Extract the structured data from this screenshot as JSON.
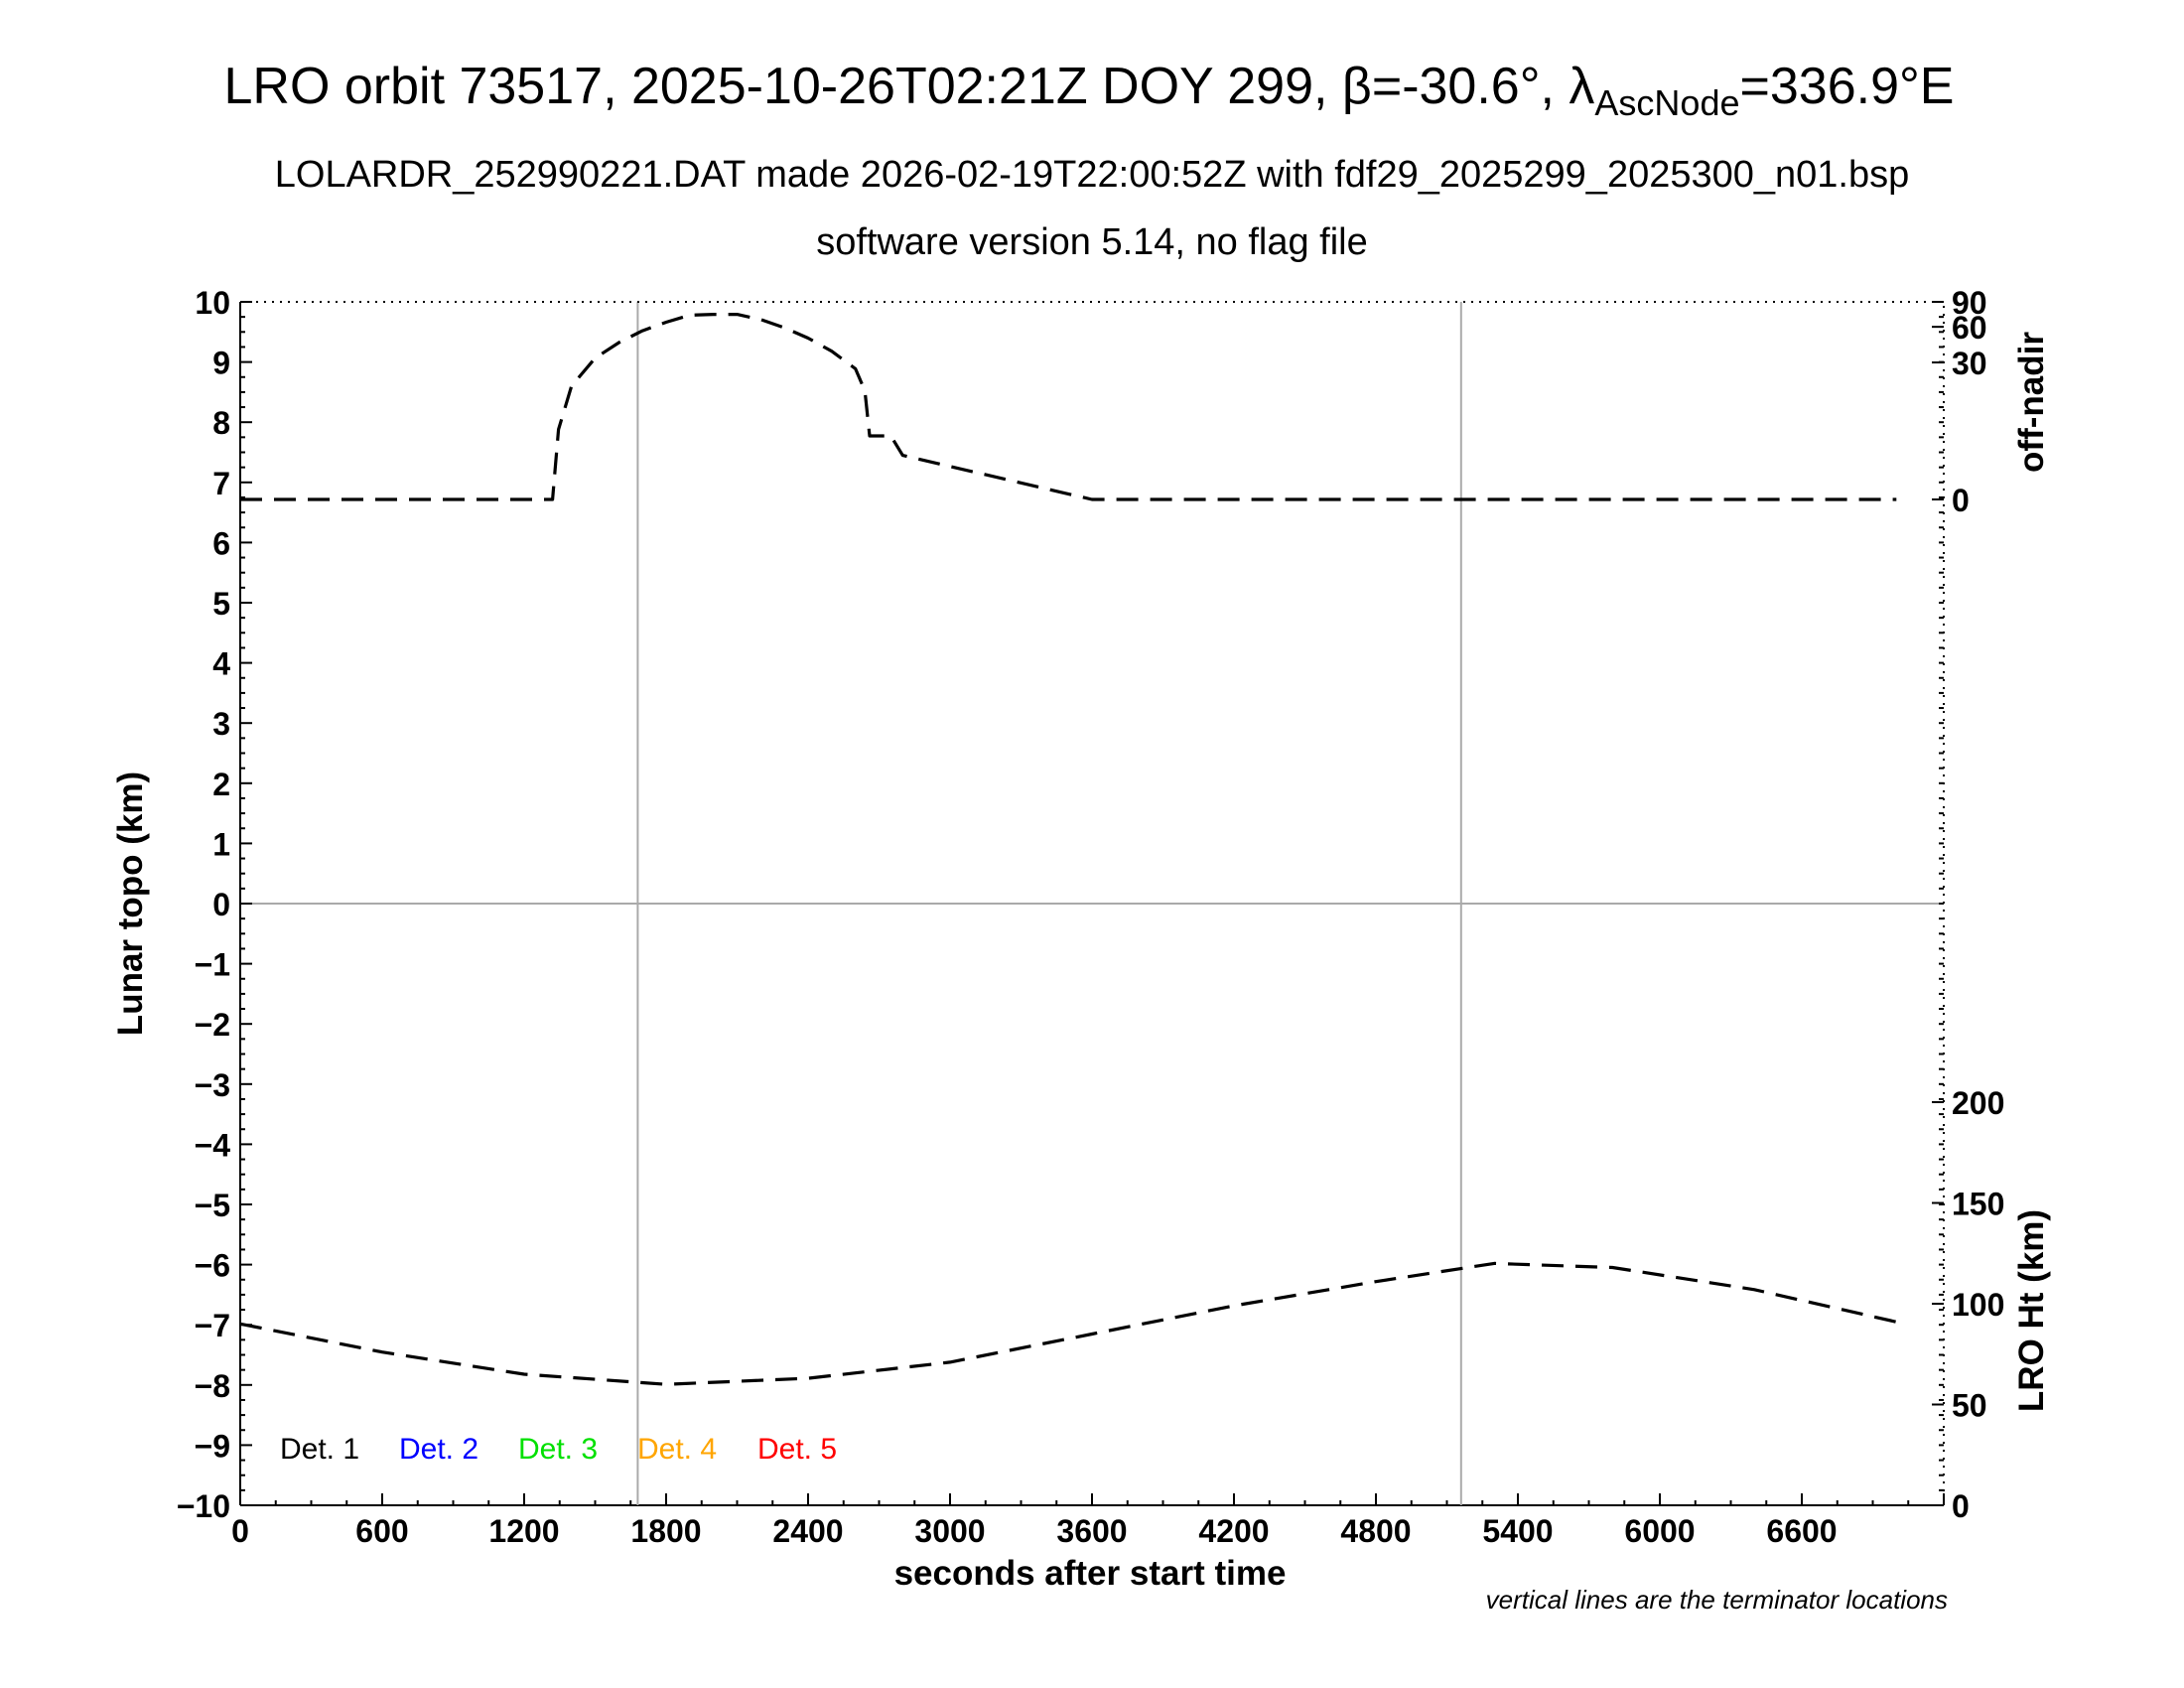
{
  "chart_data": {
    "type": "line",
    "title": {
      "pre": "LRO orbit 73517, 2025-10-26T02:21Z DOY 299, ",
      "beta_symbol": "β",
      "beta_value": "=-30.6°, ",
      "lambda_symbol": "λ",
      "lambda_subscript": "AscNode",
      "lambda_value": "=336.9°E"
    },
    "subtitle1": "LOLARDR_252990221.DAT made 2026-02-19T22:00:52Z with fdf29_2025299_2025300_n01.bsp",
    "subtitle2": "software version 5.14, no flag file",
    "xlabel": "seconds after start time",
    "ylabel_left": "Lunar topo (km)",
    "ylabel_right_top": "off-nadir",
    "ylabel_right_bottom": "LRO Ht (km)",
    "note": "vertical lines are the terminator locations",
    "xlim": [
      0,
      7200
    ],
    "ylim_left": [
      -10,
      10
    ],
    "x_ticks": [
      "0",
      "600",
      "1200",
      "1800",
      "2400",
      "3000",
      "3600",
      "4200",
      "4800",
      "5400",
      "6000",
      "6600"
    ],
    "y_ticks_left": [
      "−10",
      "−9",
      "−8",
      "−7",
      "−6",
      "−5",
      "−4",
      "−3",
      "−2",
      "−1",
      "0",
      "1",
      "2",
      "3",
      "4",
      "5",
      "6",
      "7",
      "8",
      "9",
      "10"
    ],
    "off_nadir_ticks": [
      "0",
      "30",
      "60",
      "90"
    ],
    "height_ticks": [
      "0",
      "50",
      "100",
      "150",
      "200"
    ],
    "terminator_x": [
      1680,
      5160
    ],
    "legend": [
      {
        "label": "Det. 1",
        "color": "#000000"
      },
      {
        "label": "Det. 2",
        "color": "#0000ff"
      },
      {
        "label": "Det. 3",
        "color": "#00e000"
      },
      {
        "label": "Det. 4",
        "color": "#ffa500"
      },
      {
        "label": "Det. 5",
        "color": "#ff0000"
      }
    ],
    "series": [
      {
        "axis": "off-nadir (deg)",
        "line_style": "dashed",
        "color": "#000000",
        "x": [
          0,
          600,
          1200,
          1320,
          1345,
          1400,
          1500,
          1600,
          1700,
          1800,
          1900,
          2000,
          2100,
          2200,
          2300,
          2400,
          2500,
          2600,
          2640,
          2660,
          2700,
          2750,
          2800,
          3600,
          4800,
          6000,
          7000
        ],
        "y": [
          0,
          0,
          0,
          0,
          4,
          17,
          33,
          45,
          56,
          65,
          73,
          74,
          74,
          68,
          59,
          49,
          38,
          26,
          15,
          3,
          3,
          3,
          1,
          0,
          0,
          0,
          0
        ]
      },
      {
        "axis": "LRO Ht (km)",
        "line_style": "dashed",
        "color": "#000000",
        "x": [
          0,
          600,
          1200,
          1800,
          2400,
          3000,
          3600,
          4200,
          4800,
          5300,
          5800,
          6400,
          7000
        ],
        "y": [
          90,
          76,
          65,
          60,
          63,
          71,
          85,
          99,
          111,
          120,
          118,
          107,
          91
        ]
      }
    ]
  }
}
